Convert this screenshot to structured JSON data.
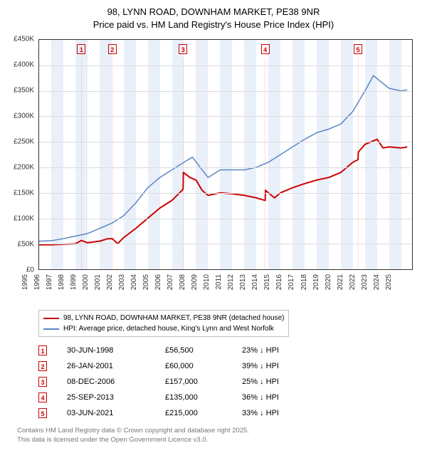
{
  "title": {
    "line1": "98, LYNN ROAD, DOWNHAM MARKET, PE38 9NR",
    "line2": "Price paid vs. HM Land Registry's House Price Index (HPI)"
  },
  "chart": {
    "type": "line",
    "background_color": "#ffffff",
    "grid_color": "#dcdcdc",
    "band_color": "#eaf0fa",
    "border_color": "#333333",
    "axis_fontsize": 10,
    "x": {
      "min": 1995,
      "max": 2025.9,
      "ticks": [
        1995,
        1996,
        1997,
        1998,
        1999,
        2000,
        2001,
        2002,
        2003,
        2004,
        2005,
        2006,
        2007,
        2008,
        2009,
        2010,
        2011,
        2012,
        2013,
        2014,
        2015,
        2016,
        2017,
        2018,
        2019,
        2020,
        2021,
        2022,
        2023,
        2024,
        2025
      ],
      "band_years": [
        1996,
        1998,
        2000,
        2002,
        2004,
        2006,
        2008,
        2010,
        2012,
        2014,
        2016,
        2018,
        2020,
        2022,
        2024
      ]
    },
    "y": {
      "min": 0,
      "max": 450000,
      "tick_step": 50000,
      "prefix": "£",
      "suffix": "K",
      "ticks": [
        0,
        50000,
        100000,
        150000,
        200000,
        250000,
        300000,
        350000,
        400000,
        450000
      ]
    },
    "series": {
      "price_paid": {
        "color": "#cc0000",
        "width": 2,
        "points": [
          [
            1995.0,
            48000
          ],
          [
            1996.0,
            48000
          ],
          [
            1997.0,
            49000
          ],
          [
            1998.0,
            50000
          ],
          [
            1998.5,
            56500
          ],
          [
            1999.0,
            52000
          ],
          [
            2000.0,
            55000
          ],
          [
            2000.7,
            60000
          ],
          [
            2001.07,
            60000
          ],
          [
            2001.5,
            50000
          ],
          [
            2002.0,
            62000
          ],
          [
            2003.0,
            80000
          ],
          [
            2004.0,
            100000
          ],
          [
            2005.0,
            120000
          ],
          [
            2006.0,
            135000
          ],
          [
            2006.93,
            157000
          ],
          [
            2006.95,
            190000
          ],
          [
            2007.5,
            180000
          ],
          [
            2008.0,
            175000
          ],
          [
            2008.5,
            155000
          ],
          [
            2009.0,
            145000
          ],
          [
            2010.0,
            150000
          ],
          [
            2011.0,
            148000
          ],
          [
            2012.0,
            145000
          ],
          [
            2013.0,
            140000
          ],
          [
            2013.73,
            135000
          ],
          [
            2013.75,
            155000
          ],
          [
            2014.5,
            140000
          ],
          [
            2015.0,
            150000
          ],
          [
            2016.0,
            160000
          ],
          [
            2017.0,
            168000
          ],
          [
            2018.0,
            175000
          ],
          [
            2019.0,
            180000
          ],
          [
            2020.0,
            190000
          ],
          [
            2021.0,
            210000
          ],
          [
            2021.42,
            215000
          ],
          [
            2021.45,
            230000
          ],
          [
            2022.0,
            245000
          ],
          [
            2023.0,
            255000
          ],
          [
            2023.5,
            238000
          ],
          [
            2024.0,
            240000
          ],
          [
            2025.0,
            238000
          ],
          [
            2025.5,
            240000
          ]
        ]
      },
      "hpi": {
        "color": "#5a86c5",
        "width": 1.5,
        "points": [
          [
            1995.0,
            55000
          ],
          [
            1996.0,
            56000
          ],
          [
            1997.0,
            60000
          ],
          [
            1998.0,
            65000
          ],
          [
            1999.0,
            70000
          ],
          [
            2000.0,
            80000
          ],
          [
            2001.0,
            90000
          ],
          [
            2002.0,
            105000
          ],
          [
            2003.0,
            130000
          ],
          [
            2004.0,
            160000
          ],
          [
            2005.0,
            180000
          ],
          [
            2006.0,
            195000
          ],
          [
            2007.0,
            210000
          ],
          [
            2007.7,
            220000
          ],
          [
            2008.5,
            195000
          ],
          [
            2009.0,
            180000
          ],
          [
            2010.0,
            195000
          ],
          [
            2011.0,
            195000
          ],
          [
            2012.0,
            195000
          ],
          [
            2013.0,
            200000
          ],
          [
            2014.0,
            210000
          ],
          [
            2015.0,
            225000
          ],
          [
            2016.0,
            240000
          ],
          [
            2017.0,
            255000
          ],
          [
            2018.0,
            268000
          ],
          [
            2019.0,
            275000
          ],
          [
            2020.0,
            285000
          ],
          [
            2021.0,
            310000
          ],
          [
            2022.0,
            350000
          ],
          [
            2022.7,
            380000
          ],
          [
            2023.2,
            370000
          ],
          [
            2024.0,
            355000
          ],
          [
            2025.0,
            350000
          ],
          [
            2025.5,
            352000
          ]
        ]
      }
    },
    "markers": [
      {
        "n": "1",
        "x": 1998.5
      },
      {
        "n": "2",
        "x": 2001.07
      },
      {
        "n": "3",
        "x": 2006.93
      },
      {
        "n": "4",
        "x": 2013.73
      },
      {
        "n": "5",
        "x": 2021.42
      }
    ]
  },
  "legend": {
    "series1": {
      "color": "#cc0000",
      "label": "98, LYNN ROAD, DOWNHAM MARKET, PE38 9NR (detached house)"
    },
    "series2": {
      "color": "#5a86c5",
      "label": "HPI: Average price, detached house, King's Lynn and West Norfolk"
    }
  },
  "sales": [
    {
      "n": "1",
      "date": "30-JUN-1998",
      "price": "£56,500",
      "diff": "23% ↓ HPI"
    },
    {
      "n": "2",
      "date": "26-JAN-2001",
      "price": "£60,000",
      "diff": "39% ↓ HPI"
    },
    {
      "n": "3",
      "date": "08-DEC-2006",
      "price": "£157,000",
      "diff": "25% ↓ HPI"
    },
    {
      "n": "4",
      "date": "25-SEP-2013",
      "price": "£135,000",
      "diff": "36% ↓ HPI"
    },
    {
      "n": "5",
      "date": "03-JUN-2021",
      "price": "£215,000",
      "diff": "33% ↓ HPI"
    }
  ],
  "footer": {
    "line1": "Contains HM Land Registry data © Crown copyright and database right 2025.",
    "line2": "This data is licensed under the Open Government Licence v3.0."
  }
}
